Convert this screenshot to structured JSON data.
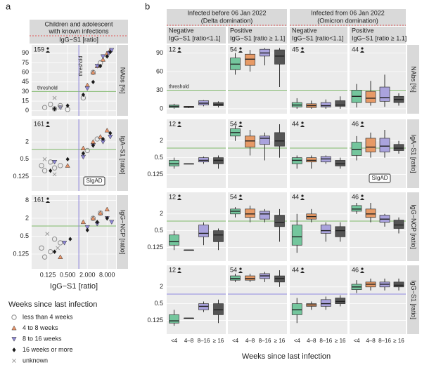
{
  "panel_a": {
    "label": "a",
    "header": [
      "Children and adolescent",
      "with known infections"
    ],
    "subheader": "IgG−S1 [ratio]",
    "x_title": "IgG−S1 [ratio]",
    "xlim": [
      0.04,
      15
    ],
    "xticks": [
      {
        "value": 0.125,
        "label": "0.125"
      },
      {
        "value": 0.5,
        "label": "0.500"
      },
      {
        "value": 2,
        "label": "2.000"
      },
      {
        "value": 8,
        "label": "8.000"
      }
    ],
    "x_threshold": 1.1,
    "x_threshold_color": "#8a80d8",
    "x_threshold_text": "threshold",
    "rows": [
      {
        "title": "NAbs [%]",
        "n": 159,
        "log": false,
        "ylim": [
          -8,
          103
        ],
        "yticks": [
          0,
          15,
          30,
          45,
          60,
          75,
          90
        ],
        "threshold": 30,
        "threshold_color": "#7fb86a",
        "threshold_text": "threshold",
        "series": [
          {
            "x": [
              0.1,
              0.15,
              0.2,
              0.3,
              0.5,
              1.5,
              3,
              5
            ],
            "y": [
              5,
              10,
              3,
              8,
              2,
              20,
              60,
              75
            ]
          },
          {
            "x": [
              2,
              3,
              4,
              6,
              8,
              10
            ],
            "y": [
              40,
              60,
              70,
              80,
              90,
              95
            ]
          },
          {
            "x": [
              0.3,
              2,
              4,
              6,
              9,
              11
            ],
            "y": [
              5,
              35,
              70,
              85,
              90,
              95
            ]
          },
          {
            "x": [
              0.2,
              0.5,
              1.5,
              3,
              5,
              8,
              10
            ],
            "y": [
              3,
              8,
              25,
              45,
              70,
              85,
              92
            ]
          },
          {
            "x": [
              0.2,
              0.3
            ],
            "y": [
              20,
              5
            ]
          }
        ]
      },
      {
        "title": "IgA−S1 [ratio]",
        "n": 161,
        "log": true,
        "ylim": [
          0.04,
          12
        ],
        "yticks": [
          0.125,
          0.5,
          2
        ],
        "threshold": 1.1,
        "threshold_color": "#7fb86a",
        "annotation": "SIgAD",
        "series": [
          {
            "x": [
              0.08,
              0.1,
              0.15,
              0.2,
              0.3,
              2,
              4
            ],
            "y": [
              0.3,
              0.2,
              0.4,
              0.25,
              0.3,
              1,
              2.5
            ]
          },
          {
            "x": [
              0.5,
              1.5,
              3,
              5,
              8
            ],
            "y": [
              0.3,
              1.2,
              2,
              3,
              5
            ]
          },
          {
            "x": [
              0.2,
              1.5,
              3,
              6,
              10
            ],
            "y": [
              0.4,
              0.6,
              1.5,
              2,
              3
            ]
          },
          {
            "x": [
              0.15,
              0.5,
              1.5,
              3,
              6,
              10
            ],
            "y": [
              0.2,
              0.5,
              0.8,
              1.5,
              2.5,
              4
            ]
          },
          {
            "x": [
              0.1,
              0.2
            ],
            "y": [
              0.5,
              0.15
            ]
          }
        ]
      },
      {
        "title": "IgG−NCP [ratio]",
        "n": 161,
        "log": true,
        "ylim": [
          0.04,
          12
        ],
        "yticks": [
          0.125,
          0.5,
          2,
          8
        ],
        "threshold": 1.1,
        "threshold_color": "#7fb86a",
        "series": [
          {
            "x": [
              0.08,
              0.1,
              0.15,
              0.2,
              0.3,
              3,
              5
            ],
            "y": [
              0.2,
              0.1,
              0.15,
              0.4,
              0.3,
              2,
              3
            ]
          },
          {
            "x": [
              0.3,
              1.5,
              3,
              5,
              8
            ],
            "y": [
              0.1,
              1.5,
              2,
              3,
              4
            ]
          },
          {
            "x": [
              0.4,
              2,
              4,
              8,
              11
            ],
            "y": [
              0.3,
              1,
              1.3,
              2,
              1.5
            ]
          },
          {
            "x": [
              0.2,
              0.6,
              2,
              4,
              8
            ],
            "y": [
              0.15,
              0.4,
              0.8,
              1.5,
              2
            ]
          },
          {
            "x": [
              0.12,
              0.25
            ],
            "y": [
              0.6,
              0.2
            ]
          }
        ]
      }
    ]
  },
  "legend": {
    "title": "Weeks since last infection",
    "items": [
      {
        "name": "less than 4 weeks",
        "color": "#8c8c8c",
        "shape": "circle"
      },
      {
        "name": "4 to 8 weeks",
        "color": "#e9956a",
        "shape": "triangle"
      },
      {
        "name": "8 to 16 weeks",
        "color": "#8e87d6",
        "shape": "triangle-down"
      },
      {
        "name": "16 weeks or more",
        "color": "#1a1a1a",
        "shape": "diamond"
      },
      {
        "name": "unknown",
        "color": "#999999",
        "shape": "cross"
      }
    ]
  },
  "panel_b": {
    "label": "b",
    "x_title": "Weeks since last infection",
    "categories": [
      "<4",
      "4–8",
      "8–16",
      "≥ 16"
    ],
    "colors": [
      "#74c69d",
      "#e79a66",
      "#aaa3dd",
      "#555555"
    ],
    "groups": [
      {
        "title": [
          "Infected before 06 Jan 2022",
          "(Delta domination)"
        ],
        "subpanels": [
          [
            "Negative",
            "IgG−S1 [ratio<1.1]"
          ],
          [
            "Positive",
            "IgG−S1 [ratio ≥ 1.1]"
          ]
        ]
      },
      {
        "title": [
          "Infected from 06 Jan 2022",
          "(Omicron domination)"
        ],
        "subpanels": [
          [
            "Negative",
            "IgG−S1 [ratio<1.1]"
          ],
          [
            "Positive",
            "IgG−S1 [ratio ≥ 1.1]"
          ]
        ]
      }
    ],
    "rows": [
      {
        "title": "NAbs [%]",
        "log": false,
        "ylim": [
          -8,
          103
        ],
        "yticks": [
          0,
          30,
          60,
          90
        ],
        "threshold": 30,
        "threshold_color": "#7fb86a",
        "threshold_text": "threshold",
        "n": [
          12,
          54,
          45,
          44
        ],
        "boxes": [
          [
            [
              0,
              2,
              4,
              6,
              8
            ],
            [
              1,
              2,
              3,
              4,
              4
            ],
            [
              4,
              6,
              9,
              13,
              14
            ],
            [
              2,
              5,
              7,
              10,
              12
            ]
          ],
          [
            [
              55,
              63,
              72,
              82,
              90
            ],
            [
              60,
              70,
              80,
              88,
              95
            ],
            [
              70,
              85,
              90,
              96,
              98
            ],
            [
              35,
              72,
              85,
              95,
              98
            ]
          ],
          [
            [
              0,
              3,
              6,
              10,
              17
            ],
            [
              0,
              2,
              5,
              8,
              13
            ],
            [
              0,
              3,
              5,
              10,
              15
            ],
            [
              0,
              4,
              6,
              13,
              20
            ]
          ],
          [
            [
              2,
              10,
              20,
              30,
              40
            ],
            [
              5,
              10,
              17,
              28,
              45
            ],
            [
              3,
              12,
              18,
              35,
              55
            ],
            [
              5,
              10,
              15,
              20,
              25
            ]
          ]
        ]
      },
      {
        "title": "IgA−S1 [ratio]",
        "log": true,
        "ylim": [
          0.04,
          12
        ],
        "yticks": [
          0.125,
          0.5,
          2
        ],
        "threshold": 1.1,
        "threshold_color": "#7fb86a",
        "annotation": "SIgAD",
        "n": [
          12,
          54,
          44,
          46
        ],
        "boxes": [
          [
            [
              0.2,
              0.25,
              0.3,
              0.4,
              0.5
            ],
            [
              0.3,
              0.3,
              0.3,
              0.3,
              0.3
            ],
            [
              0.3,
              0.35,
              0.4,
              0.5,
              0.55
            ],
            [
              0.2,
              0.3,
              0.4,
              0.5,
              0.6
            ]
          ],
          [
            [
              2,
              3,
              4,
              5.5,
              7
            ],
            [
              0.6,
              1.2,
              2,
              3,
              5
            ],
            [
              0.4,
              1.5,
              2.5,
              3,
              4
            ],
            [
              0.5,
              1.3,
              2,
              4,
              8
            ]
          ],
          [
            [
              0.2,
              0.3,
              0.4,
              0.5,
              0.6
            ],
            [
              0.2,
              0.35,
              0.4,
              0.5,
              0.6
            ],
            [
              0.3,
              0.35,
              0.45,
              0.55,
              0.6
            ],
            [
              0.2,
              0.25,
              0.3,
              0.4,
              0.5
            ]
          ],
          [
            [
              0.4,
              0.6,
              1,
              1.8,
              3
            ],
            [
              0.5,
              0.8,
              1.2,
              2.5,
              4
            ],
            [
              0.5,
              0.8,
              1.3,
              2.5,
              5
            ],
            [
              0.7,
              0.9,
              1.1,
              1.5,
              2
            ]
          ]
        ]
      },
      {
        "title": "IgG−NCP [ratio]",
        "log": true,
        "ylim": [
          0.04,
          12
        ],
        "yticks": [
          0.125,
          0.5,
          2
        ],
        "threshold": 1.1,
        "threshold_color": "#7fb86a",
        "n": [
          12,
          54,
          44,
          46
        ],
        "boxes": [
          [
            [
              0.1,
              0.15,
              0.2,
              0.35,
              0.5
            ],
            [
              0.1,
              0.1,
              0.1,
              0.1,
              0.1
            ],
            [
              0.15,
              0.3,
              0.4,
              0.8,
              1
            ],
            [
              0.1,
              0.2,
              0.35,
              0.5,
              0.6
            ]
          ],
          [
            [
              1.5,
              2,
              2.5,
              3,
              3.5
            ],
            [
              1,
              1.5,
              2,
              3,
              4
            ],
            [
              1,
              1.3,
              2,
              2.5,
              3
            ],
            [
              0.2,
              0.7,
              1,
              1.8,
              3
            ]
          ],
          [
            [
              0.08,
              0.15,
              0.3,
              0.8,
              2
            ],
            [
              1,
              1.3,
              1.6,
              2,
              3
            ],
            [
              0.2,
              0.4,
              0.5,
              0.8,
              1
            ],
            [
              0.2,
              0.3,
              0.5,
              0.7,
              1
            ]
          ],
          [
            [
              2,
              2.5,
              3,
              4,
              5
            ],
            [
              1,
              1.5,
              2,
              3,
              5
            ],
            [
              0.7,
              1,
              1.3,
              1.8,
              2
            ],
            [
              0.4,
              0.6,
              0.8,
              1.2,
              1.5
            ]
          ]
        ]
      },
      {
        "title": "IgG−S1 [ratio]",
        "log": true,
        "ylim": [
          0.04,
          12
        ],
        "yticks": [
          0.125,
          0.5,
          2
        ],
        "threshold": 1.1,
        "threshold_color": "#8f8ae0",
        "n": [
          12,
          54,
          44,
          46
        ],
        "boxes": [
          [
            [
              0.08,
              0.1,
              0.12,
              0.2,
              0.3
            ],
            [
              0.15,
              0.15,
              0.15,
              0.15,
              0.15
            ],
            [
              0.25,
              0.3,
              0.4,
              0.5,
              0.6
            ],
            [
              0.1,
              0.2,
              0.3,
              0.5,
              0.7
            ]
          ],
          [
            [
              3,
              3.5,
              4,
              5,
              6
            ],
            [
              3,
              3.5,
              4,
              5,
              6
            ],
            [
              3,
              4,
              5,
              6,
              7
            ],
            [
              2,
              3,
              4,
              5,
              8
            ]
          ],
          [
            [
              0.1,
              0.2,
              0.3,
              0.5,
              0.8
            ],
            [
              0.3,
              0.4,
              0.45,
              0.5,
              0.6
            ],
            [
              0.3,
              0.4,
              0.5,
              0.7,
              0.9
            ],
            [
              0.4,
              0.5,
              0.6,
              0.8,
              1
            ]
          ],
          [
            [
              1.2,
              1.6,
              2,
              2.5,
              3.5
            ],
            [
              1.5,
              2,
              2.5,
              3,
              4
            ],
            [
              1.5,
              2,
              2.5,
              3,
              4
            ],
            [
              1.5,
              2,
              2.3,
              3,
              4
            ]
          ]
        ]
      }
    ]
  }
}
